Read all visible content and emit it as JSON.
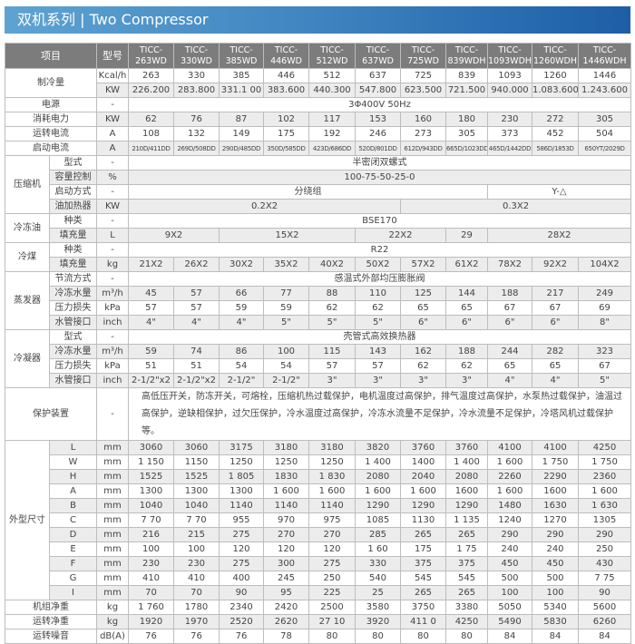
{
  "title": "双机系列 | Two Compressor",
  "header": {
    "item": "项目",
    "model": "型号",
    "models": [
      "TICC-\n263WD",
      "TICC-\n330WD",
      "TICC-\n385WD",
      "TICC-\n446WD",
      "TICC-\n512WD",
      "TICC-\n637WD",
      "TICC-\n725WD",
      "TICC-\n839WDH",
      "TICC-\n1093WDH",
      "TICC-\n1260WDH",
      "TICC-\n1446WDH"
    ]
  },
  "rows": [
    {
      "group": "制冷量",
      "group_rows": 2,
      "unit": "Kcal/h",
      "cells": [
        "263",
        "330",
        "385",
        "446",
        "512",
        "637",
        "725",
        "839",
        "1093",
        "1260",
        "1446"
      ]
    },
    {
      "unit": "KW",
      "cells": [
        "226.200",
        "283.800",
        "331.1 00",
        "383.600",
        "440.300",
        "547.800",
        "623.500",
        "721.500",
        "940.000",
        "1.083.600",
        "1.243.600"
      ]
    },
    {
      "group": "电源",
      "group_rows": 1,
      "unit": "-",
      "cells": [
        {
          "v": "3Φ400V 50Hz",
          "span": 11
        }
      ]
    },
    {
      "group": "消耗电力",
      "group_rows": 1,
      "unit": "KW",
      "cells": [
        "62",
        "76",
        "87",
        "102",
        "117",
        "153",
        "160",
        "180",
        "230",
        "272",
        "305"
      ]
    },
    {
      "group": "运转电流",
      "group_rows": 1,
      "unit": "A",
      "cells": [
        "108",
        "132",
        "149",
        "175",
        "192",
        "246",
        "273",
        "305",
        "373",
        "452",
        "504"
      ]
    },
    {
      "group": "启动电流",
      "group_rows": 1,
      "unit": "A",
      "small": true,
      "cells": [
        "210D/411DD",
        "269D/508DD",
        "290D/485DD",
        "350D/585DD",
        "423D/686DD",
        "520D/801DD",
        "612D/943DD",
        "665D/1023DD",
        "465D/1442DD",
        "586D/1853D",
        "650YT/2029D"
      ]
    },
    {
      "group": "压缩机",
      "group_rows": 4,
      "sub": "型式",
      "unit": "-",
      "cells": [
        {
          "v": "半密闭双螺式",
          "span": 11
        }
      ]
    },
    {
      "sub": "容量控制",
      "unit": "%",
      "cells": [
        {
          "v": "100-75-50-25-0",
          "span": 11
        }
      ]
    },
    {
      "sub": "启动方式",
      "unit": "-",
      "cells": [
        {
          "v": "分绕组",
          "span": 8
        },
        {
          "v": "Y-△",
          "span": 3
        }
      ]
    },
    {
      "sub": "油加热器",
      "unit": "KW",
      "cells": [
        {
          "v": "0.2X2",
          "span": 6
        },
        {
          "v": "0.3X2",
          "span": 5
        }
      ]
    },
    {
      "group": "冷冻油",
      "group_rows": 2,
      "sub": "种类",
      "unit": "-",
      "cells": [
        {
          "v": "BSE170",
          "span": 11
        }
      ]
    },
    {
      "sub": "填充量",
      "unit": "L",
      "cells": [
        {
          "v": "9X2",
          "span": 2
        },
        {
          "v": "15X2",
          "span": 3
        },
        {
          "v": "22X2",
          "span": 2
        },
        {
          "v": "29",
          "span": 1
        },
        {
          "v": "28X2",
          "span": 3
        }
      ]
    },
    {
      "group": "冷煤",
      "group_rows": 2,
      "sub": "种类",
      "unit": "-",
      "cells": [
        {
          "v": "R22",
          "span": 11
        }
      ]
    },
    {
      "sub": "填充量",
      "unit": "kg",
      "cells": [
        "21X2",
        "26X2",
        "30X2",
        "35X2",
        "40X2",
        "50X2",
        "57X2",
        "61X2",
        "78X2",
        "92X2",
        "104X2"
      ]
    },
    {
      "group": "蒸发器",
      "group_rows": 4,
      "sub": "节流方式",
      "unit": "-",
      "cells": [
        {
          "v": "感温式外部均压膨胀阀",
          "span": 11
        }
      ]
    },
    {
      "sub": "冷冻水量",
      "unit": "m³/h",
      "cells": [
        "45",
        "57",
        "66",
        "77",
        "88",
        "110",
        "125",
        "144",
        "188",
        "217",
        "249"
      ]
    },
    {
      "sub": "压力损失",
      "unit": "kPa",
      "cells": [
        "57",
        "57",
        "59",
        "59",
        "62",
        "62",
        "65",
        "65",
        "67",
        "67",
        "69"
      ]
    },
    {
      "sub": "水管接口",
      "unit": "inch",
      "cells": [
        "4\"",
        "4\"",
        "4\"",
        "5\"",
        "5\"",
        "5\"",
        "6\"",
        "6\"",
        "6\"",
        "6\"",
        "8\""
      ]
    },
    {
      "group": "冷凝器",
      "group_rows": 4,
      "sub": "型式",
      "unit": "-",
      "cells": [
        {
          "v": "壳管式高效换热器",
          "span": 11
        }
      ]
    },
    {
      "sub": "冷冻水量",
      "unit": "m³/h",
      "cells": [
        "59",
        "74",
        "86",
        "100",
        "115",
        "143",
        "162",
        "188",
        "244",
        "282",
        "323"
      ]
    },
    {
      "sub": "压力损失",
      "unit": "kPa",
      "cells": [
        "51",
        "51",
        "54",
        "54",
        "57",
        "57",
        "62",
        "62",
        "65",
        "65",
        "67"
      ]
    },
    {
      "sub": "水管接口",
      "unit": "inch",
      "cells": [
        "2-1/2\"x2",
        "2-1/2\"x2",
        "2-1/2\"",
        "2-1/2\"",
        "3\"",
        "3\"",
        "3\"",
        "3\"",
        "4\"",
        "4\"",
        "5\""
      ]
    },
    {
      "group": "保护装置",
      "group_rows": 1,
      "unit": "-",
      "protection": true,
      "cells": [
        {
          "v": "高低压开关，防冻开关，可熔栓，压缩机热过载保护，电机温度过高保护，排气温度过高保护，水泵热过载保护，油温过高保护，逆缺相保护，过欠压保护，冷水温度过高保护，冷冻水流量不足保护，冷水流量不足保护，冷塔风机过载保护等。",
          "span": 11
        }
      ]
    },
    {
      "group": "外型尺寸",
      "group_rows": 11,
      "sub": "L",
      "unit": "mm",
      "cells": [
        "3060",
        "3060",
        "3175",
        "3180",
        "3180",
        "3820",
        "3760",
        "3760",
        "4100",
        "4100",
        "4250"
      ]
    },
    {
      "sub": "W",
      "unit": "mm",
      "cells": [
        "1 150",
        "1150",
        "1250",
        "1250",
        "1250",
        "1 400",
        "1400",
        "1 400",
        "1 600",
        "1 750",
        "1 750"
      ]
    },
    {
      "sub": "H",
      "unit": "mm",
      "cells": [
        "1525",
        "1525",
        "1 805",
        "1830",
        "1 830",
        "2080",
        "2040",
        "2080",
        "2260",
        "2290",
        "2360"
      ]
    },
    {
      "sub": "A",
      "unit": "mm",
      "cells": [
        "1300",
        "1300",
        "1300",
        "1 600",
        "1 600",
        "1 600",
        "1 600",
        "1600",
        "1 600",
        "1600",
        "1 600"
      ]
    },
    {
      "sub": "B",
      "unit": "mm",
      "cells": [
        "1040",
        "1040",
        "1140",
        "1140",
        "1140",
        "1290",
        "1290",
        "1290",
        "1480",
        "1630",
        "1 630"
      ]
    },
    {
      "sub": "C",
      "unit": "mm",
      "cells": [
        "7 70",
        "7 70",
        "955",
        "970",
        "975",
        "1085",
        "1130",
        "1 135",
        "1240",
        "1270",
        "1305"
      ]
    },
    {
      "sub": "D",
      "unit": "mm",
      "cells": [
        "216",
        "215",
        "275",
        "270",
        "270",
        "285",
        "265",
        "265",
        "290",
        "290",
        "290"
      ]
    },
    {
      "sub": "E",
      "unit": "mm",
      "cells": [
        "100",
        "100",
        "120",
        "120",
        "120",
        "1 60",
        "175",
        "1 75",
        "240",
        "240",
        "250"
      ]
    },
    {
      "sub": "F",
      "unit": "mm",
      "cells": [
        "230",
        "230",
        "275",
        "300",
        "275",
        "330",
        "375",
        "375",
        "450",
        "450",
        "430"
      ]
    },
    {
      "sub": "G",
      "unit": "mm",
      "cells": [
        "410",
        "410",
        "400",
        "245",
        "250",
        "540",
        "545",
        "545",
        "500",
        "500",
        "7 75"
      ]
    },
    {
      "sub": "I",
      "unit": "mm",
      "cells": [
        "70",
        "70",
        "90",
        "95",
        "225",
        "25",
        "265",
        "265",
        "100",
        "100",
        "90"
      ]
    },
    {
      "group": "机组净重",
      "group_rows": 1,
      "unit": "kg",
      "cells": [
        "1 760",
        "1780",
        "2340",
        "2420",
        "2500",
        "3580",
        "3750",
        "3380",
        "5050",
        "5340",
        "5600"
      ]
    },
    {
      "group": "运转净重",
      "group_rows": 1,
      "unit": "kg",
      "cells": [
        "1920",
        "1970",
        "2520",
        "2620",
        "27 10",
        "3920",
        "411 0",
        "4250",
        "5490",
        "5830",
        "6260"
      ]
    },
    {
      "group": "运转噪音",
      "group_rows": 1,
      "unit": "dB(A)",
      "cells": [
        "76",
        "76",
        "76",
        "78",
        "80",
        "80",
        "80",
        "80",
        "84",
        "84",
        "84"
      ]
    }
  ]
}
